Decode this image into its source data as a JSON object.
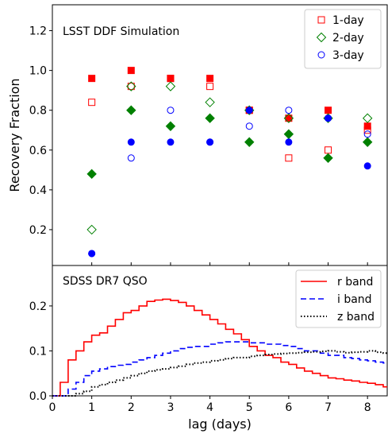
{
  "chart_data": [
    {
      "type": "scatter",
      "title": "LSST DDF Simulation",
      "xlabel": "lag (days)",
      "ylabel": "Recovery Fraction",
      "xlim": [
        0,
        8.5
      ],
      "ylim": [
        0.02,
        1.33
      ],
      "yticks": [
        0.2,
        0.4,
        0.6,
        0.8,
        1.0,
        1.2
      ],
      "ytick_labels": [
        "0.2",
        "0.4",
        "0.6",
        "0.8",
        "1.0",
        "1.2"
      ],
      "legend_position": "top-right",
      "series": [
        {
          "name": "1-day",
          "color": "#ff0000",
          "marker": "square",
          "filled": [
            [
              1,
              0.96
            ],
            [
              2,
              1.0
            ],
            [
              3,
              0.96
            ],
            [
              4,
              0.96
            ],
            [
              5,
              0.8
            ],
            [
              6,
              0.76
            ],
            [
              7,
              0.8
            ],
            [
              8,
              0.72
            ]
          ],
          "open": [
            [
              1,
              0.84
            ],
            [
              2,
              0.92
            ],
            [
              3,
              0.96
            ],
            [
              4,
              0.92
            ],
            [
              5,
              0.8
            ],
            [
              6,
              0.56
            ],
            [
              7,
              0.6
            ],
            [
              8,
              0.7
            ]
          ]
        },
        {
          "name": "2-day",
          "color": "#008000",
          "marker": "diamond",
          "filled": [
            [
              1,
              0.48
            ],
            [
              2,
              0.8
            ],
            [
              3,
              0.72
            ],
            [
              4,
              0.76
            ],
            [
              5,
              0.64
            ],
            [
              6,
              0.68
            ],
            [
              7,
              0.56
            ],
            [
              8,
              0.64
            ]
          ],
          "open": [
            [
              1,
              0.2
            ],
            [
              2,
              0.92
            ],
            [
              3,
              0.92
            ],
            [
              4,
              0.84
            ],
            [
              5,
              0.8
            ],
            [
              6,
              0.76
            ],
            [
              7,
              0.76
            ],
            [
              8,
              0.76
            ]
          ]
        },
        {
          "name": "3-day",
          "color": "#0000ff",
          "marker": "circle",
          "filled": [
            [
              1,
              0.08
            ],
            [
              2,
              0.64
            ],
            [
              3,
              0.64
            ],
            [
              4,
              0.64
            ],
            [
              5,
              0.8
            ],
            [
              6,
              0.64
            ],
            [
              7,
              0.76
            ],
            [
              8,
              0.52
            ]
          ],
          "open": [
            [
              1,
              0.08
            ],
            [
              2,
              0.56
            ],
            [
              3,
              0.8
            ],
            [
              4,
              0.64
            ],
            [
              5,
              0.72
            ],
            [
              6,
              0.8
            ],
            [
              7,
              0.76
            ],
            [
              8,
              0.68
            ]
          ]
        }
      ]
    },
    {
      "type": "line",
      "title": "SDSS DR7 QSO",
      "xlabel": "lag (days)",
      "xlim": [
        0,
        8.5
      ],
      "ylim": [
        0,
        0.29
      ],
      "xticks": [
        0,
        1,
        2,
        3,
        4,
        5,
        6,
        7,
        8
      ],
      "xtick_labels": [
        "0",
        "1",
        "2",
        "3",
        "4",
        "5",
        "6",
        "7",
        "8"
      ],
      "yticks": [
        0.0,
        0.1,
        0.2
      ],
      "ytick_labels": [
        "0.0",
        "0.1",
        "0.2"
      ],
      "legend_position": "top-right",
      "bin_width": 0.2,
      "x": [
        0.0,
        0.2,
        0.4,
        0.6,
        0.8,
        1.0,
        1.2,
        1.4,
        1.6,
        1.8,
        2.0,
        2.2,
        2.4,
        2.6,
        2.8,
        3.0,
        3.2,
        3.4,
        3.6,
        3.8,
        4.0,
        4.2,
        4.4,
        4.6,
        4.8,
        5.0,
        5.2,
        5.4,
        5.6,
        5.8,
        6.0,
        6.2,
        6.4,
        6.6,
        6.8,
        7.0,
        7.2,
        7.4,
        7.6,
        7.8,
        8.0,
        8.2,
        8.4
      ],
      "series": [
        {
          "name": "r band",
          "color": "#ff0000",
          "style": "solid",
          "values": [
            0.0,
            0.03,
            0.08,
            0.1,
            0.12,
            0.135,
            0.14,
            0.155,
            0.17,
            0.185,
            0.19,
            0.2,
            0.21,
            0.213,
            0.215,
            0.212,
            0.208,
            0.2,
            0.19,
            0.18,
            0.17,
            0.16,
            0.148,
            0.138,
            0.125,
            0.11,
            0.1,
            0.09,
            0.085,
            0.075,
            0.07,
            0.062,
            0.055,
            0.05,
            0.045,
            0.04,
            0.038,
            0.035,
            0.033,
            0.03,
            0.028,
            0.025,
            0.02
          ]
        },
        {
          "name": "i band",
          "color": "#0000ff",
          "style": "dashed",
          "values": [
            0.0,
            0.0,
            0.015,
            0.03,
            0.045,
            0.055,
            0.06,
            0.065,
            0.068,
            0.07,
            0.075,
            0.08,
            0.085,
            0.09,
            0.095,
            0.1,
            0.105,
            0.108,
            0.11,
            0.11,
            0.115,
            0.118,
            0.12,
            0.12,
            0.12,
            0.118,
            0.118,
            0.115,
            0.115,
            0.112,
            0.11,
            0.105,
            0.1,
            0.1,
            0.095,
            0.09,
            0.09,
            0.085,
            0.083,
            0.08,
            0.078,
            0.075,
            0.073
          ]
        },
        {
          "name": "z band",
          "color": "#000000",
          "style": "dotted",
          "values": [
            0.0,
            0.0,
            0.0,
            0.005,
            0.01,
            0.02,
            0.025,
            0.03,
            0.035,
            0.04,
            0.045,
            0.05,
            0.055,
            0.058,
            0.06,
            0.063,
            0.066,
            0.07,
            0.073,
            0.075,
            0.078,
            0.08,
            0.083,
            0.085,
            0.085,
            0.088,
            0.09,
            0.092,
            0.093,
            0.094,
            0.095,
            0.096,
            0.097,
            0.098,
            0.099,
            0.1,
            0.098,
            0.096,
            0.097,
            0.098,
            0.1,
            0.097,
            0.095
          ]
        }
      ]
    }
  ]
}
